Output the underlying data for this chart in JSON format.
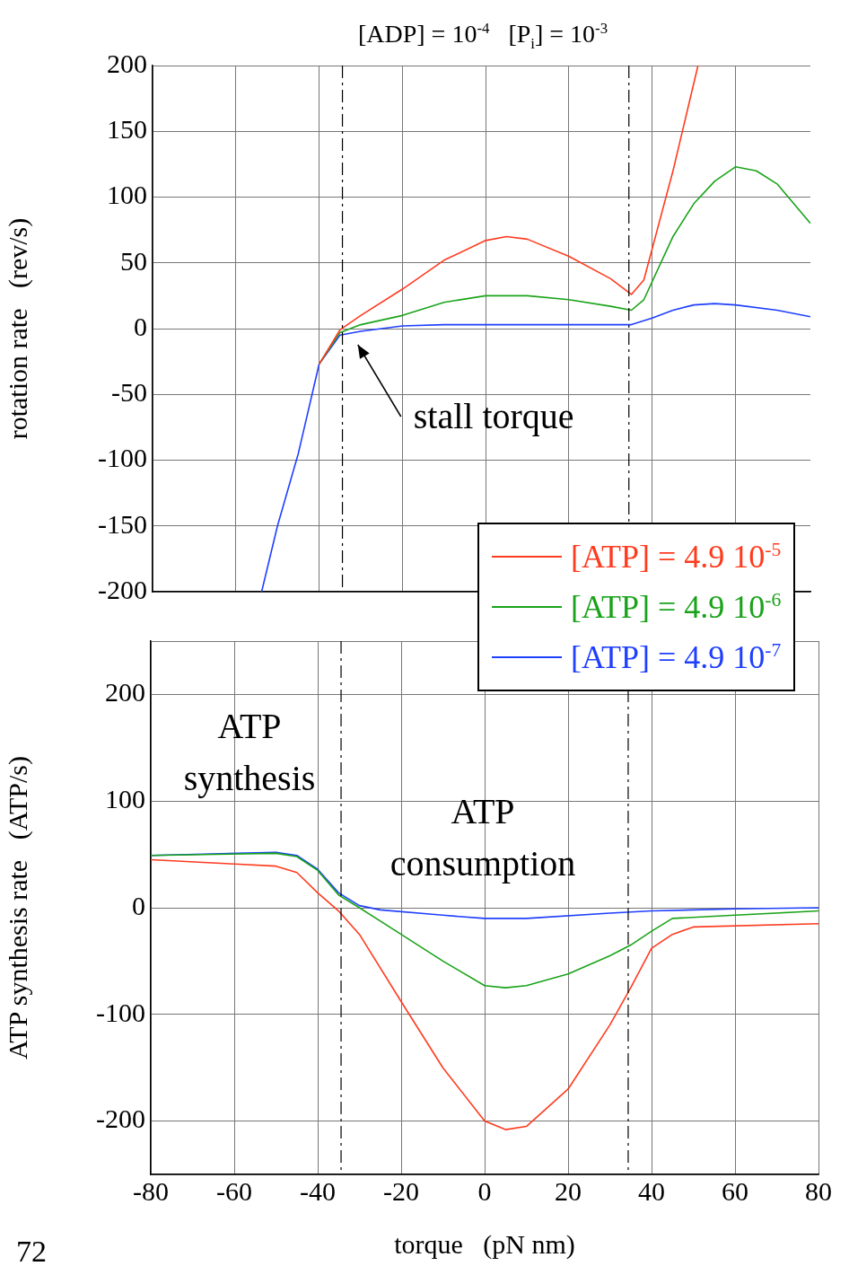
{
  "chart_data": [
    {
      "type": "line",
      "title": "[ADP] = 10$^{-4}$   [P$_{i}$] = 10$^{-3}$",
      "ylabel": "rotation rate   (rev/s)",
      "xlim": [
        -80,
        78
      ],
      "xticks": [
        -80,
        -60,
        -40,
        -20,
        0,
        20,
        40,
        60
      ],
      "ylim": [
        -200,
        200
      ],
      "yticks": [
        -200,
        -150,
        -100,
        -50,
        0,
        50,
        100,
        150,
        200
      ],
      "tick_labels": "y",
      "grid": true,
      "legend": "bottom right",
      "marker": "none",
      "line_style": "solid",
      "ref_lines": [
        {
          "axis": "x",
          "value": -34.4,
          "color": "#000000",
          "line_style": "dashed"
        },
        {
          "axis": "x",
          "value": 34.4,
          "color": "#000000",
          "line_style": "dashed"
        }
      ],
      "annotations": [
        {
          "text": "stall torque",
          "x": -35,
          "y": 0
        }
      ],
      "series": [
        {
          "name": "[ATP] = 4.9 10$^{-5}$",
          "color": "#ff3b1f",
          "x": [
            -40,
            -35,
            -30,
            -20,
            -10,
            0,
            5,
            10,
            20,
            30,
            35,
            38,
            45,
            51
          ],
          "values": [
            -27,
            -1,
            10,
            30,
            52,
            67,
            70,
            68,
            55,
            38,
            26,
            37,
            120,
            200
          ]
        },
        {
          "name": "[ATP] = 4.9 10$^{-6}$",
          "color": "#1aa31a",
          "x": [
            -40,
            -35,
            -30,
            -20,
            -10,
            0,
            10,
            20,
            30,
            35,
            38,
            45,
            50,
            55,
            60,
            65,
            70,
            78
          ],
          "values": [
            -27,
            -3,
            3,
            10,
            20,
            25,
            25,
            22,
            17,
            14,
            22,
            70,
            95,
            112,
            123,
            120,
            110,
            80
          ]
        },
        {
          "name": "[ATP] = 4.9 10$^{-7}$",
          "color": "#1f3fff",
          "x": [
            -53.8,
            -50,
            -45,
            -40,
            -35,
            -30,
            -20,
            -10,
            0,
            10,
            20,
            30,
            35,
            40,
            45,
            50,
            55,
            60,
            70,
            78
          ],
          "values": [
            -200,
            -150,
            -95,
            -27,
            -5,
            -2,
            2,
            3,
            3,
            3,
            3,
            3,
            3,
            8,
            14,
            18,
            19,
            18,
            14,
            9
          ]
        }
      ]
    },
    {
      "type": "line",
      "xlabel": "torque   (pN nm)",
      "ylabel": "ATP synthesis rate   (ATP/s)",
      "xlim": [
        -80,
        80
      ],
      "xticks": [
        -80,
        -60,
        -40,
        -20,
        0,
        20,
        40,
        60,
        80
      ],
      "ylim": [
        -250,
        250
      ],
      "yticks": [
        {
          "value": -250,
          "label": null
        },
        -200,
        -100,
        0,
        100,
        200,
        {
          "value": 250,
          "label": null
        }
      ],
      "grid": true,
      "marker": "none",
      "line_style": "solid",
      "ref_lines": [
        {
          "axis": "x",
          "value": -34.4,
          "color": "#000000",
          "line_style": "dashed"
        },
        {
          "axis": "x",
          "value": 34.4,
          "color": "#000000",
          "line_style": "dashed"
        }
      ],
      "annotations": [
        "ATP\nsynthesis",
        "ATP\nconsumption",
        "72"
      ],
      "series": [
        {
          "color": "#ff3b1f",
          "x": [
            -80,
            -60,
            -50,
            -45,
            -40,
            -35,
            -30,
            -20,
            -10,
            0,
            5,
            10,
            20,
            30,
            35,
            40,
            45,
            50,
            80
          ],
          "values": [
            45,
            41,
            39,
            33,
            14,
            -3,
            -25,
            -88,
            -150,
            -200,
            -208,
            -205,
            -170,
            -110,
            -75,
            -38,
            -25,
            -18,
            -15
          ]
        },
        {
          "color": "#1aa31a",
          "x": [
            -80,
            -50,
            -45,
            -40,
            -35,
            -30,
            -20,
            -10,
            0,
            5,
            10,
            20,
            30,
            35,
            40,
            45,
            60,
            80
          ],
          "values": [
            49,
            51,
            48,
            35,
            12,
            0,
            -25,
            -50,
            -73,
            -75,
            -73,
            -62,
            -45,
            -35,
            -22,
            -10,
            -7,
            -3
          ]
        },
        {
          "color": "#1f3fff",
          "x": [
            -80,
            -50,
            -45,
            -40,
            -35,
            -30,
            -25,
            -10,
            0,
            10,
            30,
            40,
            60,
            80
          ],
          "values": [
            49,
            52,
            49,
            36,
            14,
            2,
            -2,
            -7,
            -10,
            -10,
            -5,
            -3,
            -1,
            0
          ]
        }
      ]
    }
  ]
}
